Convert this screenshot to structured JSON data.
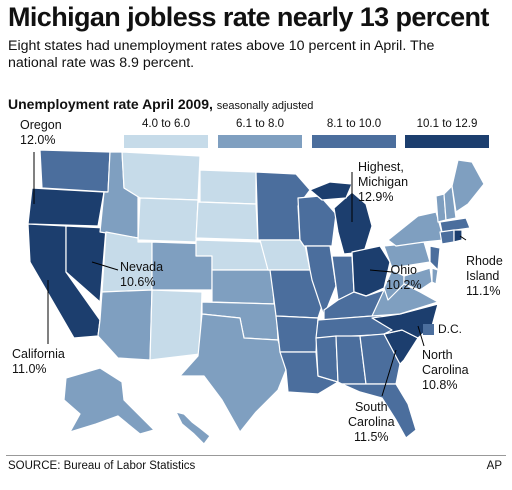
{
  "headline": "Michigan jobless rate nearly 13 percent",
  "subtitle": "Eight states had unemployment rates above 10 percent in April. The national rate was 8.9 percent.",
  "map_title": "Unemployment rate April 2009,",
  "map_title_note": "seasonally adjusted",
  "legend": [
    {
      "label": "4.0 to 6.0",
      "color": "#c6dbe9"
    },
    {
      "label": "6.1 to 8.0",
      "color": "#7f9fc0"
    },
    {
      "label": "8.1 to 10.0",
      "color": "#4b6e9d"
    },
    {
      "label": "10.1 to 12.9",
      "color": "#1c3e6e"
    }
  ],
  "callouts": {
    "oregon": {
      "name": "Oregon",
      "value": "12.0%"
    },
    "michigan": {
      "name": "Highest,",
      "name2": "Michigan",
      "value": "12.9%"
    },
    "nevada": {
      "name": "Nevada",
      "value": "10.6%"
    },
    "ohio": {
      "name": "Ohio",
      "value": "10.2%"
    },
    "rhode_island": {
      "name": "Rhode",
      "name2": "Island",
      "value": "11.1%"
    },
    "california": {
      "name": "California",
      "value": "11.0%"
    },
    "north_carolina": {
      "name": "North",
      "name2": "Carolina",
      "value": "10.8%"
    },
    "south_carolina": {
      "name": "South",
      "name2": "Carolina",
      "value": "11.5%"
    },
    "dc": {
      "name": "D.C."
    }
  },
  "source": "SOURCE: Bureau of Labor Statistics",
  "credit": "AP",
  "colors": {
    "low": "#c6dbe9",
    "mid_low": "#7f9fc0",
    "mid_high": "#4b6e9d",
    "high": "#1c3e6e",
    "border": "#ffffff"
  }
}
